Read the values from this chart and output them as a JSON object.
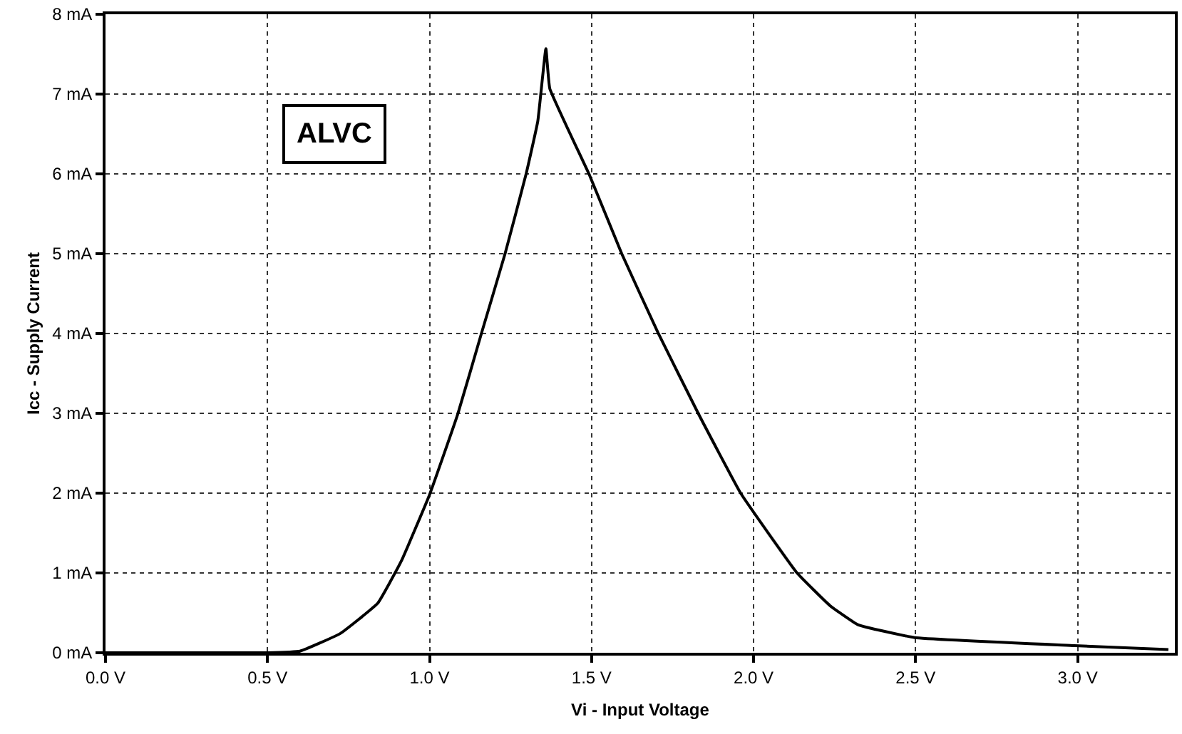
{
  "chart_data": {
    "type": "line",
    "xlabel": "Vi - Input Voltage",
    "ylabel": "Icc - Supply Current",
    "annotations": [
      "ALVC"
    ],
    "x": [
      0,
      0.5,
      0.6,
      0.724,
      0.84,
      0.913,
      1.0,
      1.087,
      1.16,
      1.233,
      1.298,
      1.334,
      1.359,
      1.371,
      1.494,
      1.593,
      1.705,
      1.829,
      1.96,
      2.134,
      2.236,
      2.323,
      2.497,
      2.99,
      3.28
    ],
    "series": [
      {
        "color": "#000000",
        "values": [
          0,
          0,
          0.02,
          0.24,
          0.62,
          1.15,
          1.98,
          2.99,
          4.0,
          5.0,
          6.0,
          6.66,
          7.57,
          7.07,
          5.98,
          5.0,
          4.01,
          3.0,
          2.0,
          1.0,
          0.59,
          0.35,
          0.19,
          0.09,
          0.04
        ]
      }
    ],
    "xlim": [
      0,
      3.3
    ],
    "ylim": [
      0,
      8
    ],
    "xticks": [
      {
        "value": 0,
        "label": "0.0 V"
      },
      {
        "value": 0.5,
        "label": "0.5 V"
      },
      {
        "value": 1,
        "label": "1.0 V"
      },
      {
        "value": 1.5,
        "label": "1.5 V"
      },
      {
        "value": 2,
        "label": "2.0 V"
      },
      {
        "value": 2.5,
        "label": "2.5 V"
      },
      {
        "value": 3,
        "label": "3.0 V"
      }
    ],
    "yticks": [
      {
        "value": 0,
        "label": "0 mA"
      },
      {
        "value": 1,
        "label": "1 mA"
      },
      {
        "value": 2,
        "label": "2 mA"
      },
      {
        "value": 3,
        "label": "3 mA"
      },
      {
        "value": 4,
        "label": "4 mA"
      },
      {
        "value": 5,
        "label": "5 mA"
      },
      {
        "value": 6,
        "label": "6 mA"
      },
      {
        "value": 7,
        "label": "7 mA"
      },
      {
        "value": 8,
        "label": "8 mA"
      }
    ],
    "grid": true,
    "marker": "none",
    "line_style": "solid"
  }
}
